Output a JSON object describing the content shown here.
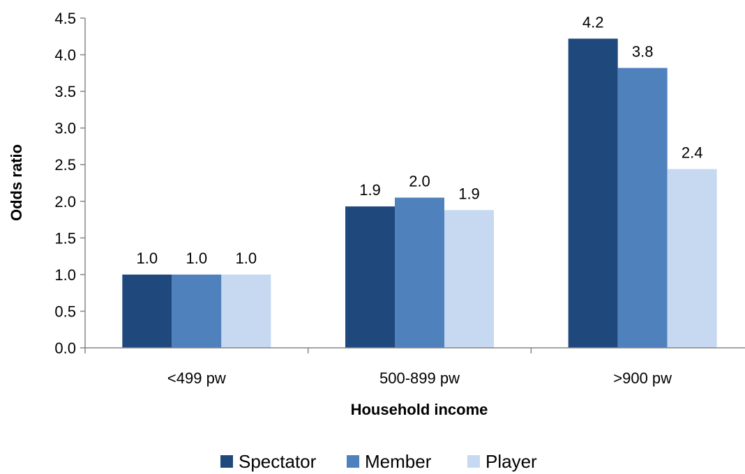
{
  "chart_data": {
    "type": "bar",
    "categories": [
      "<499 pw",
      "500-899 pw",
      ">900 pw"
    ],
    "series": [
      {
        "name": "Spectator",
        "values": [
          1.0,
          1.93,
          4.22
        ],
        "labels": [
          "1.0",
          "1.9",
          "4.2"
        ],
        "color": "#1f497d"
      },
      {
        "name": "Member",
        "values": [
          1.0,
          2.05,
          3.82
        ],
        "labels": [
          "1.0",
          "2.0",
          "3.8"
        ],
        "color": "#4f81bd"
      },
      {
        "name": "Player",
        "values": [
          1.0,
          1.88,
          2.44
        ],
        "labels": [
          "1.0",
          "1.9",
          "2.4"
        ],
        "color": "#c6d9f1"
      }
    ],
    "xlabel": "Household income",
    "ylabel": "Odds ratio",
    "ylim": [
      0,
      4.5
    ],
    "yticks": [
      "0.0",
      "0.5",
      "1.0",
      "1.5",
      "2.0",
      "2.5",
      "3.0",
      "3.5",
      "4.0",
      "4.5"
    ],
    "grid": false,
    "legend_position": "bottom"
  }
}
